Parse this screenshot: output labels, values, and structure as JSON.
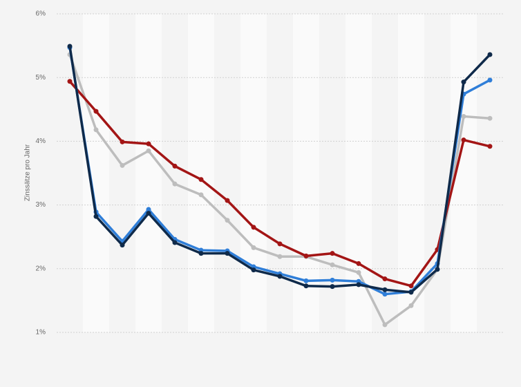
{
  "chart_data": {
    "type": "line",
    "y_label": "Zinssätze pro Jahr",
    "categories": [
      null,
      null,
      null,
      null,
      null,
      null,
      null,
      null,
      null,
      null,
      null,
      null,
      null,
      null,
      null,
      null,
      null
    ],
    "series": [
      {
        "color": "#bdbdbd",
        "values": [
          5.36,
          4.18,
          3.62,
          3.85,
          3.33,
          3.16,
          2.76,
          2.33,
          2.19,
          2.19,
          2.06,
          1.94,
          1.12,
          1.42,
          1.99,
          4.39,
          4.36
        ]
      },
      {
        "color": "#a31515",
        "values": [
          4.94,
          4.47,
          3.99,
          3.96,
          3.61,
          3.4,
          3.07,
          2.65,
          2.39,
          2.2,
          2.24,
          2.08,
          1.84,
          1.73,
          2.3,
          4.02,
          3.92
        ]
      },
      {
        "color": "#2f7ed8",
        "values": [
          5.47,
          2.89,
          2.43,
          2.93,
          2.46,
          2.29,
          2.28,
          2.03,
          1.92,
          1.81,
          1.82,
          1.8,
          1.6,
          1.64,
          2.08,
          4.74,
          4.96
        ]
      },
      {
        "color": "#0f2a4a",
        "values": [
          5.49,
          2.82,
          2.37,
          2.87,
          2.41,
          2.24,
          2.24,
          1.98,
          1.88,
          1.73,
          1.72,
          1.75,
          1.67,
          1.63,
          1.99,
          4.93,
          5.36
        ]
      }
    ],
    "ylim": [
      1,
      6
    ],
    "yticks": [
      {
        "value": 1,
        "label": "1%"
      },
      {
        "value": 2,
        "label": "2%"
      },
      {
        "value": 3,
        "label": "3%"
      },
      {
        "value": 4,
        "label": "4%"
      },
      {
        "value": 5,
        "label": "5%"
      },
      {
        "value": 6,
        "label": "6%"
      }
    ],
    "grid": true
  }
}
